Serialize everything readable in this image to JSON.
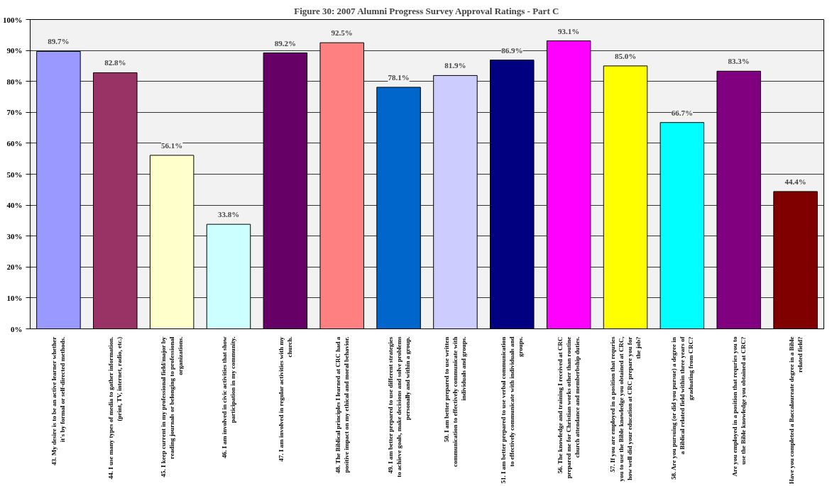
{
  "chart_data": {
    "type": "bar",
    "title": "Figure 30: 2007 Alumni Progress Survey Approval Ratings - Part C",
    "categories": [
      "43. My desire is to be an active learner whether it's by formal or self-directed methods.",
      "44. I use many types of media to gather information. (print, TV, internet, radio, etc.)",
      "45. I keep current in my professional field/major by reading journals or belonging to professional organizations.",
      "46. I am involved in civic activities that show participation in my community.",
      "47. I am involved in regular activities with my church.",
      "48. The Biblical principles I learned at CRC had a positive impact on my ethical and moral behavior.",
      "49. I am better prepared to use different strategies to achieve goals, make decisions and solve problems personally and within a group.",
      "50. I am better prepared to use written communication to effectively communicate with individuals and groups.",
      "51. I am better prepared to use verbal communication to effectively communicate with individuals and groups.",
      "56. The knowledge and training I received at CRC prepared me for Christian works other than routine church attendance and memberbship duties.",
      "57. If you are employed in a position that requries you to use the Bible knowledge you obtained at CRC, how well did your education at CRC prepare you for the job?",
      "58. Are you pursuing (or did you pursue) a degree in a Biblical related field within three years of graduating from CRC?",
      "Are you employed in a position that requries you to use the Bible knowledge you obtained at CRC?",
      "Have you completed a Baccalaureate degree in a Bible related field?"
    ],
    "values": [
      89.7,
      82.8,
      56.1,
      33.8,
      89.2,
      92.5,
      78.1,
      81.9,
      86.9,
      93.1,
      85.0,
      66.7,
      83.3,
      44.4
    ],
    "value_labels": [
      "89.7%",
      "82.8%",
      "56.1%",
      "33.8%",
      "89.2%",
      "92.5%",
      "78.1%",
      "81.9%",
      "86.9%",
      "93.1%",
      "85.0%",
      "66.7%",
      "83.3%",
      "44.4%"
    ],
    "colors": [
      "#9999ff",
      "#993366",
      "#ffffcc",
      "#ccffff",
      "#660066",
      "#ff8080",
      "#0066cc",
      "#ccccff",
      "#000080",
      "#ff00ff",
      "#ffff00",
      "#00ffff",
      "#800080",
      "#800000"
    ],
    "ylim": [
      0,
      100
    ],
    "yticks": [
      {
        "value": 0,
        "label": "0%"
      },
      {
        "value": 10,
        "label": "10%"
      },
      {
        "value": 20,
        "label": "20%"
      },
      {
        "value": 30,
        "label": "30%"
      },
      {
        "value": 40,
        "label": "40%"
      },
      {
        "value": 50,
        "label": "50%"
      },
      {
        "value": 60,
        "label": "60%"
      },
      {
        "value": 70,
        "label": "70%"
      },
      {
        "value": 80,
        "label": "80%"
      },
      {
        "value": 90,
        "label": "90%"
      },
      {
        "value": 100,
        "label": "100%"
      }
    ],
    "grid": "y"
  }
}
